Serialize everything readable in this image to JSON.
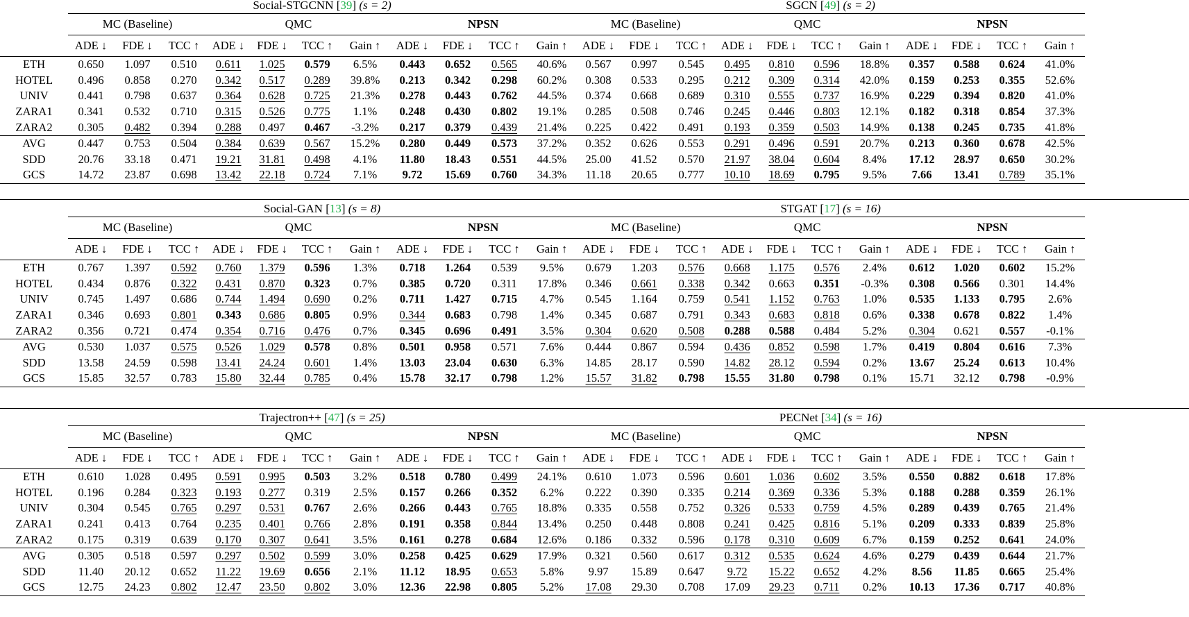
{
  "headers": {
    "group_mc": "MC (Baseline)",
    "group_qmc": "QMC",
    "group_npsn": "NPSN",
    "metrics_3": [
      "ADE ↓",
      "FDE ↓",
      "TCC ↑"
    ],
    "metrics_4": [
      "ADE ↓",
      "FDE ↓",
      "TCC ↑",
      "Gain ↑"
    ]
  },
  "blocks": [
    {
      "left": {
        "name": "Social-STGCNN",
        "ref": "39",
        "s": "(s = 2)"
      },
      "right": {
        "name": "SGCN",
        "ref": "49",
        "s": "(s = 2)"
      },
      "rows": [
        {
          "ds": "ETH",
          "v": [
            "0.650",
            "1.097",
            "0.510",
            "0.611",
            "1.025",
            "0.579",
            "6.5%",
            "0.443",
            "0.652",
            "0.565",
            "40.6%",
            "0.567",
            "0.997",
            "0.545",
            "0.495",
            "0.810",
            "0.596",
            "18.8%",
            "0.357",
            "0.588",
            "0.624",
            "41.0%"
          ]
        },
        {
          "ds": "HOTEL",
          "v": [
            "0.496",
            "0.858",
            "0.270",
            "0.342",
            "0.517",
            "0.289",
            "39.8%",
            "0.213",
            "0.342",
            "0.298",
            "60.2%",
            "0.308",
            "0.533",
            "0.295",
            "0.212",
            "0.309",
            "0.314",
            "42.0%",
            "0.159",
            "0.253",
            "0.355",
            "52.6%"
          ]
        },
        {
          "ds": "UNIV",
          "v": [
            "0.441",
            "0.798",
            "0.637",
            "0.364",
            "0.628",
            "0.725",
            "21.3%",
            "0.278",
            "0.443",
            "0.762",
            "44.5%",
            "0.374",
            "0.668",
            "0.689",
            "0.310",
            "0.555",
            "0.737",
            "16.9%",
            "0.229",
            "0.394",
            "0.820",
            "41.0%"
          ]
        },
        {
          "ds": "ZARA1",
          "v": [
            "0.341",
            "0.532",
            "0.710",
            "0.315",
            "0.526",
            "0.775",
            "1.1%",
            "0.248",
            "0.430",
            "0.802",
            "19.1%",
            "0.285",
            "0.508",
            "0.746",
            "0.245",
            "0.446",
            "0.803",
            "12.1%",
            "0.182",
            "0.318",
            "0.854",
            "37.3%"
          ]
        },
        {
          "ds": "ZARA2",
          "v": [
            "0.305",
            "0.482",
            "0.394",
            "0.288",
            "0.497",
            "0.467",
            "-3.2%",
            "0.217",
            "0.379",
            "0.439",
            "21.4%",
            "0.225",
            "0.422",
            "0.491",
            "0.193",
            "0.359",
            "0.503",
            "14.9%",
            "0.138",
            "0.245",
            "0.735",
            "41.8%"
          ]
        },
        {
          "ds": "AVG",
          "v": [
            "0.447",
            "0.753",
            "0.504",
            "0.384",
            "0.639",
            "0.567",
            "15.2%",
            "0.280",
            "0.449",
            "0.573",
            "37.2%",
            "0.352",
            "0.626",
            "0.553",
            "0.291",
            "0.496",
            "0.591",
            "20.7%",
            "0.213",
            "0.360",
            "0.678",
            "42.5%"
          ]
        },
        {
          "ds": "SDD",
          "v": [
            "20.76",
            "33.18",
            "0.471",
            "19.21",
            "31.81",
            "0.498",
            "4.1%",
            "11.80",
            "18.43",
            "0.551",
            "44.5%",
            "25.00",
            "41.52",
            "0.570",
            "21.97",
            "38.04",
            "0.604",
            "8.4%",
            "17.12",
            "28.97",
            "0.650",
            "30.2%"
          ]
        },
        {
          "ds": "GCS",
          "v": [
            "14.72",
            "23.87",
            "0.698",
            "13.42",
            "22.18",
            "0.724",
            "7.1%",
            "9.72",
            "15.69",
            "0.760",
            "34.3%",
            "11.18",
            "20.65",
            "0.777",
            "10.10",
            "18.69",
            "0.795",
            "9.5%",
            "7.66",
            "13.41",
            "0.789",
            "35.1%"
          ]
        }
      ]
    },
    {
      "left": {
        "name": "Social-GAN",
        "ref": "13",
        "s": "(s = 8)"
      },
      "right": {
        "name": "STGAT",
        "ref": "17",
        "s": "(s = 16)"
      },
      "rows": [
        {
          "ds": "ETH",
          "v": [
            "0.767",
            "1.397",
            "0.592",
            "0.760",
            "1.379",
            "0.596",
            "1.3%",
            "0.718",
            "1.264",
            "0.539",
            "9.5%",
            "0.679",
            "1.203",
            "0.576",
            "0.668",
            "1.175",
            "0.576",
            "2.4%",
            "0.612",
            "1.020",
            "0.602",
            "15.2%"
          ]
        },
        {
          "ds": "HOTEL",
          "v": [
            "0.434",
            "0.876",
            "0.322",
            "0.431",
            "0.870",
            "0.323",
            "0.7%",
            "0.385",
            "0.720",
            "0.311",
            "17.8%",
            "0.346",
            "0.661",
            "0.338",
            "0.342",
            "0.663",
            "0.351",
            "-0.3%",
            "0.308",
            "0.566",
            "0.301",
            "14.4%"
          ]
        },
        {
          "ds": "UNIV",
          "v": [
            "0.745",
            "1.497",
            "0.686",
            "0.744",
            "1.494",
            "0.690",
            "0.2%",
            "0.711",
            "1.427",
            "0.715",
            "4.7%",
            "0.545",
            "1.164",
            "0.759",
            "0.541",
            "1.152",
            "0.763",
            "1.0%",
            "0.535",
            "1.133",
            "0.795",
            "2.6%"
          ]
        },
        {
          "ds": "ZARA1",
          "v": [
            "0.346",
            "0.693",
            "0.801",
            "0.343",
            "0.686",
            "0.805",
            "0.9%",
            "0.344",
            "0.683",
            "0.798",
            "1.4%",
            "0.345",
            "0.687",
            "0.791",
            "0.343",
            "0.683",
            "0.818",
            "0.6%",
            "0.338",
            "0.678",
            "0.822",
            "1.4%"
          ]
        },
        {
          "ds": "ZARA2",
          "v": [
            "0.356",
            "0.721",
            "0.474",
            "0.354",
            "0.716",
            "0.476",
            "0.7%",
            "0.345",
            "0.696",
            "0.491",
            "3.5%",
            "0.304",
            "0.620",
            "0.508",
            "0.288",
            "0.588",
            "0.484",
            "5.2%",
            "0.304",
            "0.621",
            "0.557",
            "-0.1%"
          ]
        },
        {
          "ds": "AVG",
          "v": [
            "0.530",
            "1.037",
            "0.575",
            "0.526",
            "1.029",
            "0.578",
            "0.8%",
            "0.501",
            "0.958",
            "0.571",
            "7.6%",
            "0.444",
            "0.867",
            "0.594",
            "0.436",
            "0.852",
            "0.598",
            "1.7%",
            "0.419",
            "0.804",
            "0.616",
            "7.3%"
          ]
        },
        {
          "ds": "SDD",
          "v": [
            "13.58",
            "24.59",
            "0.598",
            "13.41",
            "24.24",
            "0.601",
            "1.4%",
            "13.03",
            "23.04",
            "0.630",
            "6.3%",
            "14.85",
            "28.17",
            "0.590",
            "14.82",
            "28.12",
            "0.594",
            "0.2%",
            "13.67",
            "25.24",
            "0.613",
            "10.4%"
          ]
        },
        {
          "ds": "GCS",
          "v": [
            "15.85",
            "32.57",
            "0.783",
            "15.80",
            "32.44",
            "0.785",
            "0.4%",
            "15.78",
            "32.17",
            "0.798",
            "1.2%",
            "15.57",
            "31.82",
            "0.798",
            "15.55",
            "31.80",
            "0.798",
            "0.1%",
            "15.71",
            "32.12",
            "0.798",
            "-0.9%"
          ]
        }
      ]
    },
    {
      "left": {
        "name": "Trajectron++",
        "ref": "47",
        "s": "(s = 25)"
      },
      "right": {
        "name": "PECNet",
        "ref": "34",
        "s": "(s = 16)"
      },
      "rows": [
        {
          "ds": "ETH",
          "v": [
            "0.610",
            "1.028",
            "0.495",
            "0.591",
            "0.995",
            "0.503",
            "3.2%",
            "0.518",
            "0.780",
            "0.499",
            "24.1%",
            "0.610",
            "1.073",
            "0.596",
            "0.601",
            "1.036",
            "0.602",
            "3.5%",
            "0.550",
            "0.882",
            "0.618",
            "17.8%"
          ]
        },
        {
          "ds": "HOTEL",
          "v": [
            "0.196",
            "0.284",
            "0.323",
            "0.193",
            "0.277",
            "0.319",
            "2.5%",
            "0.157",
            "0.266",
            "0.352",
            "6.2%",
            "0.222",
            "0.390",
            "0.335",
            "0.214",
            "0.369",
            "0.336",
            "5.3%",
            "0.188",
            "0.288",
            "0.359",
            "26.1%"
          ]
        },
        {
          "ds": "UNIV",
          "v": [
            "0.304",
            "0.545",
            "0.765",
            "0.297",
            "0.531",
            "0.767",
            "2.6%",
            "0.266",
            "0.443",
            "0.765",
            "18.8%",
            "0.335",
            "0.558",
            "0.752",
            "0.326",
            "0.533",
            "0.759",
            "4.5%",
            "0.289",
            "0.439",
            "0.765",
            "21.4%"
          ]
        },
        {
          "ds": "ZARA1",
          "v": [
            "0.241",
            "0.413",
            "0.764",
            "0.235",
            "0.401",
            "0.766",
            "2.8%",
            "0.191",
            "0.358",
            "0.844",
            "13.4%",
            "0.250",
            "0.448",
            "0.808",
            "0.241",
            "0.425",
            "0.816",
            "5.1%",
            "0.209",
            "0.333",
            "0.839",
            "25.8%"
          ]
        },
        {
          "ds": "ZARA2",
          "v": [
            "0.175",
            "0.319",
            "0.639",
            "0.170",
            "0.307",
            "0.641",
            "3.5%",
            "0.161",
            "0.278",
            "0.684",
            "12.6%",
            "0.186",
            "0.332",
            "0.596",
            "0.178",
            "0.310",
            "0.609",
            "6.7%",
            "0.159",
            "0.252",
            "0.641",
            "24.0%"
          ]
        },
        {
          "ds": "AVG",
          "v": [
            "0.305",
            "0.518",
            "0.597",
            "0.297",
            "0.502",
            "0.599",
            "3.0%",
            "0.258",
            "0.425",
            "0.629",
            "17.9%",
            "0.321",
            "0.560",
            "0.617",
            "0.312",
            "0.535",
            "0.624",
            "4.6%",
            "0.279",
            "0.439",
            "0.644",
            "21.7%"
          ]
        },
        {
          "ds": "SDD",
          "v": [
            "11.40",
            "20.12",
            "0.652",
            "11.22",
            "19.69",
            "0.656",
            "2.1%",
            "11.12",
            "18.95",
            "0.653",
            "5.8%",
            "9.97",
            "15.89",
            "0.647",
            "9.72",
            "15.22",
            "0.652",
            "4.2%",
            "8.56",
            "11.85",
            "0.665",
            "25.4%"
          ]
        },
        {
          "ds": "GCS",
          "v": [
            "12.75",
            "24.23",
            "0.802",
            "12.47",
            "23.50",
            "0.802",
            "3.0%",
            "12.36",
            "22.98",
            "0.805",
            "5.2%",
            "17.08",
            "29.30",
            "0.708",
            "17.09",
            "29.23",
            "0.711",
            "0.2%",
            "10.13",
            "17.36",
            "0.717",
            "40.8%"
          ]
        }
      ]
    }
  ]
}
